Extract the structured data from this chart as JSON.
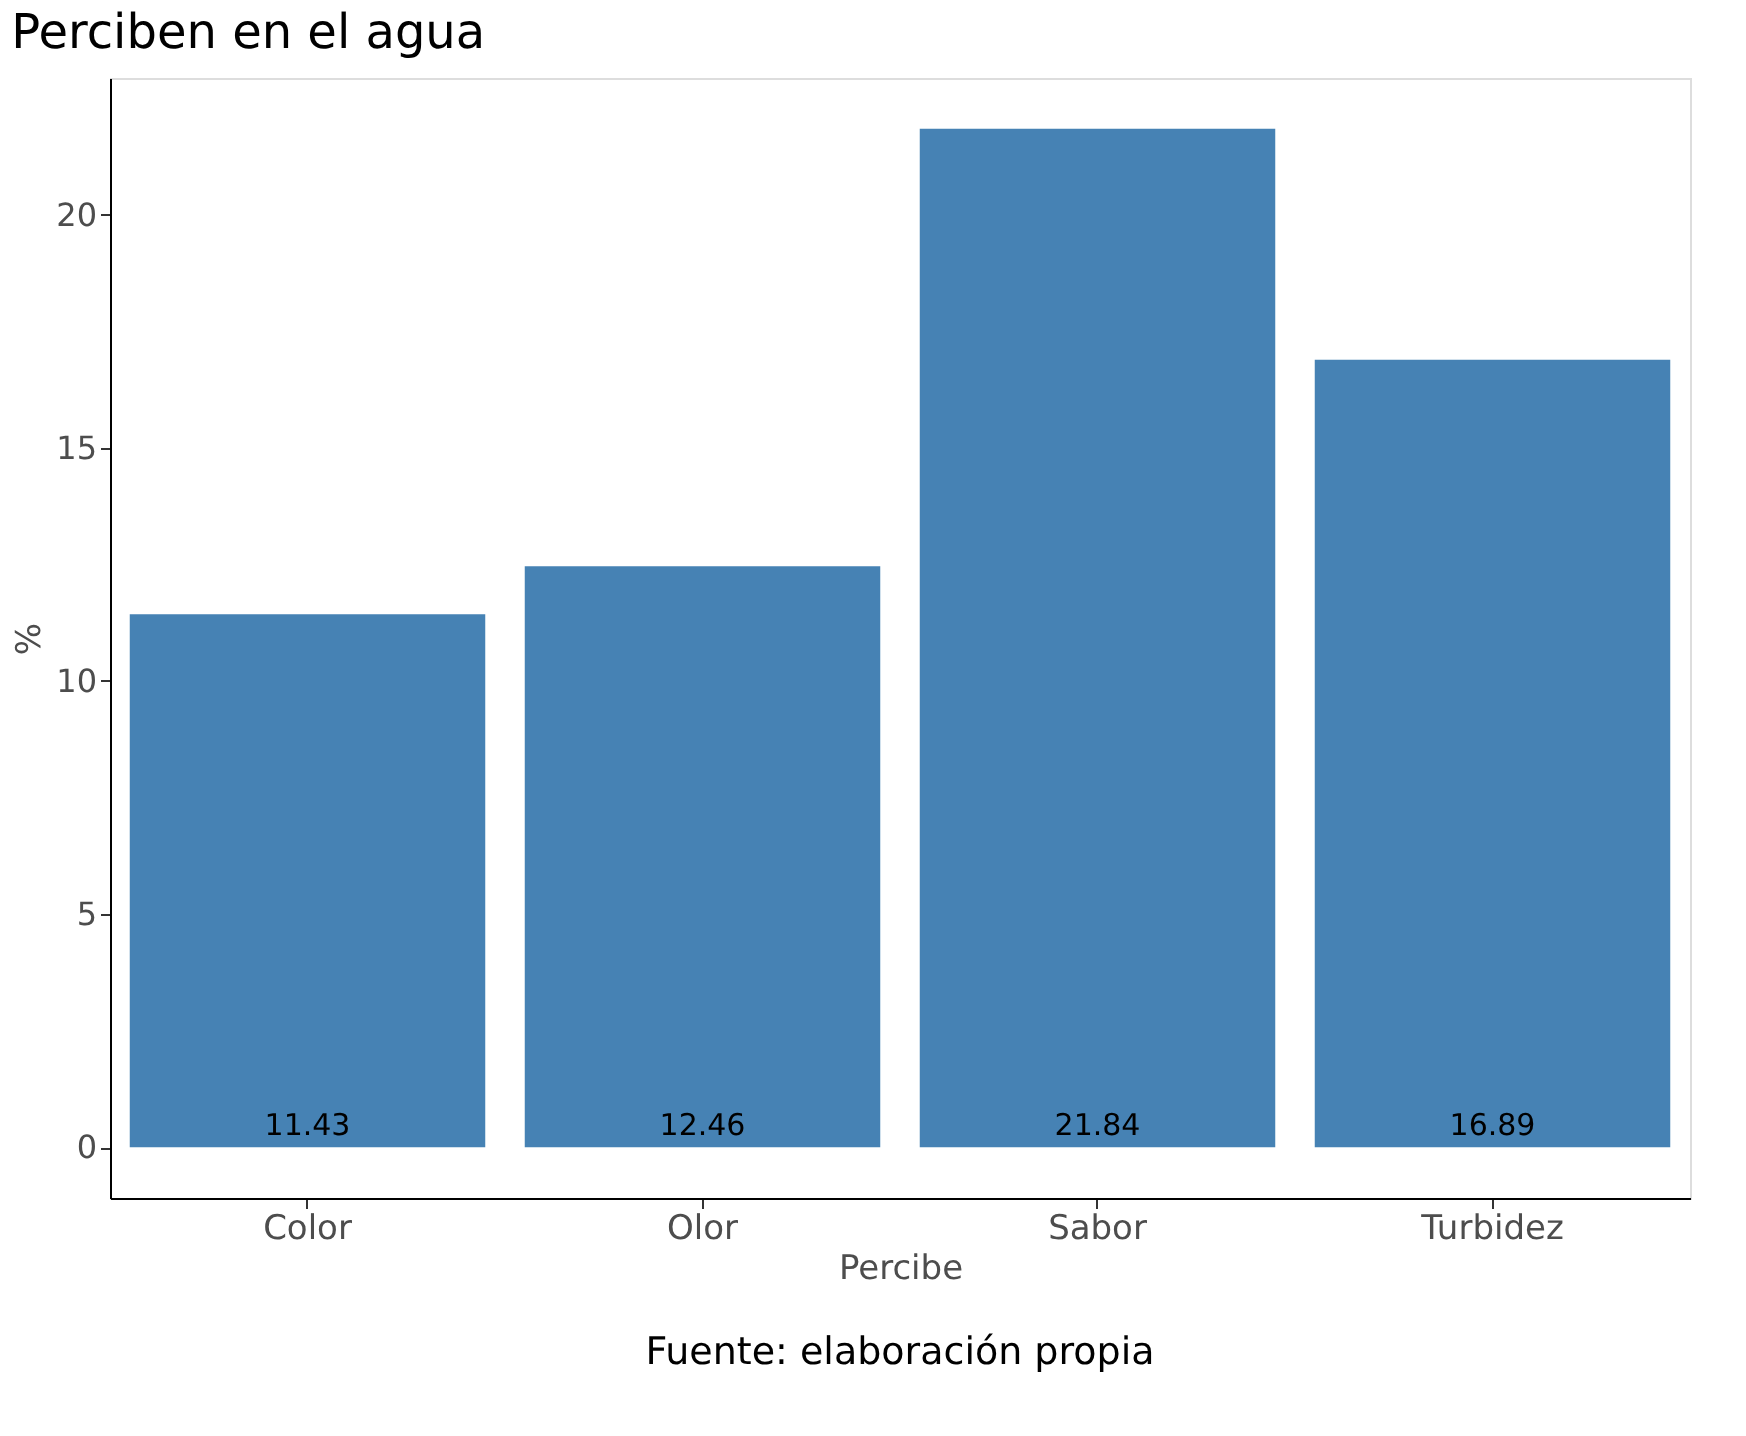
{
  "chart_data": {
    "type": "bar",
    "title": "Perciben en el agua",
    "xlabel": "Percibe",
    "ylabel": "%",
    "categories": [
      "Color",
      "Olor",
      "Sabor",
      "Turbidez"
    ],
    "values": [
      11.43,
      12.46,
      21.84,
      16.89
    ],
    "color": "#4682b4",
    "ylim": [
      -1.09,
      22.93
    ],
    "yticks": [
      0,
      5,
      10,
      15,
      20
    ],
    "grid": false,
    "data_labels": true,
    "annotations": [
      "Fuente: elaboración propia"
    ]
  }
}
